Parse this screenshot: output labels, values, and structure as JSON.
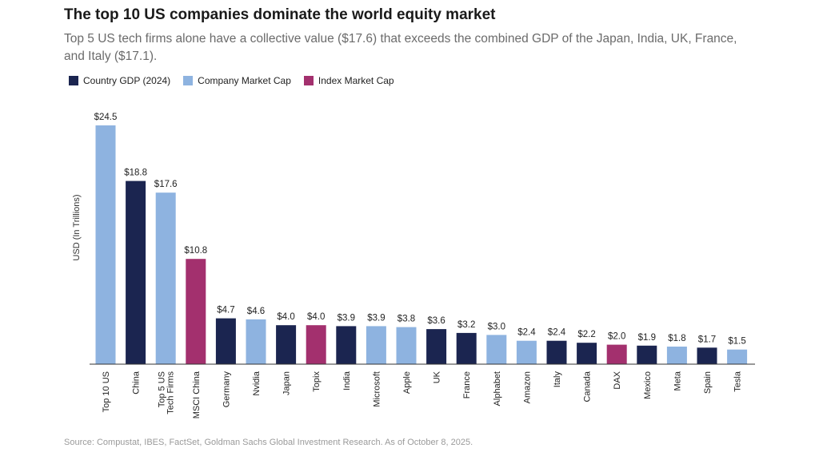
{
  "chart_data": {
    "type": "bar",
    "title": "The top 10 US companies dominate the world equity market",
    "subtitle": "Top 5 US tech firms alone have a collective value ($17.6) that exceeds the combined GDP of the Japan, India, UK, France, and Italy ($17.1).",
    "ylabel": "USD (In Trillions)",
    "xlabel": "",
    "ylim": [
      0,
      24.5
    ],
    "legend": [
      {
        "key": "gdp",
        "label": "Country GDP (2024)",
        "color": "#1b2550"
      },
      {
        "key": "company",
        "label": "Company Market Cap",
        "color": "#8eb3e0"
      },
      {
        "key": "index",
        "label": "Index Market Cap",
        "color": "#a3306e"
      }
    ],
    "bars": [
      {
        "category": "Top 10 US",
        "value": 24.5,
        "label": "$24.5",
        "group": "company"
      },
      {
        "category": "China",
        "value": 18.8,
        "label": "$18.8",
        "group": "gdp"
      },
      {
        "category": "Top 5 US Tech Firms",
        "value": 17.6,
        "label": "$17.6",
        "group": "company"
      },
      {
        "category": "MSCI China",
        "value": 10.8,
        "label": "$10.8",
        "group": "index"
      },
      {
        "category": "Germany",
        "value": 4.7,
        "label": "$4.7",
        "group": "gdp"
      },
      {
        "category": "Nvidia",
        "value": 4.6,
        "label": "$4.6",
        "group": "company"
      },
      {
        "category": "Japan",
        "value": 4.0,
        "label": "$4.0",
        "group": "gdp"
      },
      {
        "category": "Topix",
        "value": 4.0,
        "label": "$4.0",
        "group": "index"
      },
      {
        "category": "India",
        "value": 3.9,
        "label": "$3.9",
        "group": "gdp"
      },
      {
        "category": "Microsoft",
        "value": 3.9,
        "label": "$3.9",
        "group": "company"
      },
      {
        "category": "Apple",
        "value": 3.8,
        "label": "$3.8",
        "group": "company"
      },
      {
        "category": "UK",
        "value": 3.6,
        "label": "$3.6",
        "group": "gdp"
      },
      {
        "category": "France",
        "value": 3.2,
        "label": "$3.2",
        "group": "gdp"
      },
      {
        "category": "Alphabet",
        "value": 3.0,
        "label": "$3.0",
        "group": "company"
      },
      {
        "category": "Amazon",
        "value": 2.4,
        "label": "$2.4",
        "group": "company"
      },
      {
        "category": "Italy",
        "value": 2.4,
        "label": "$2.4",
        "group": "gdp"
      },
      {
        "category": "Canada",
        "value": 2.2,
        "label": "$2.2",
        "group": "gdp"
      },
      {
        "category": "DAX",
        "value": 2.0,
        "label": "$2.0",
        "group": "index"
      },
      {
        "category": "Mexico",
        "value": 1.9,
        "label": "$1.9",
        "group": "gdp"
      },
      {
        "category": "Meta",
        "value": 1.8,
        "label": "$1.8",
        "group": "company"
      },
      {
        "category": "Spain",
        "value": 1.7,
        "label": "$1.7",
        "group": "gdp"
      },
      {
        "category": "Tesla",
        "value": 1.5,
        "label": "$1.5",
        "group": "company"
      }
    ],
    "source": "Source: Compustat, IBES, FactSet, Goldman Sachs Global Investment Research. As of October 8, 2025."
  }
}
